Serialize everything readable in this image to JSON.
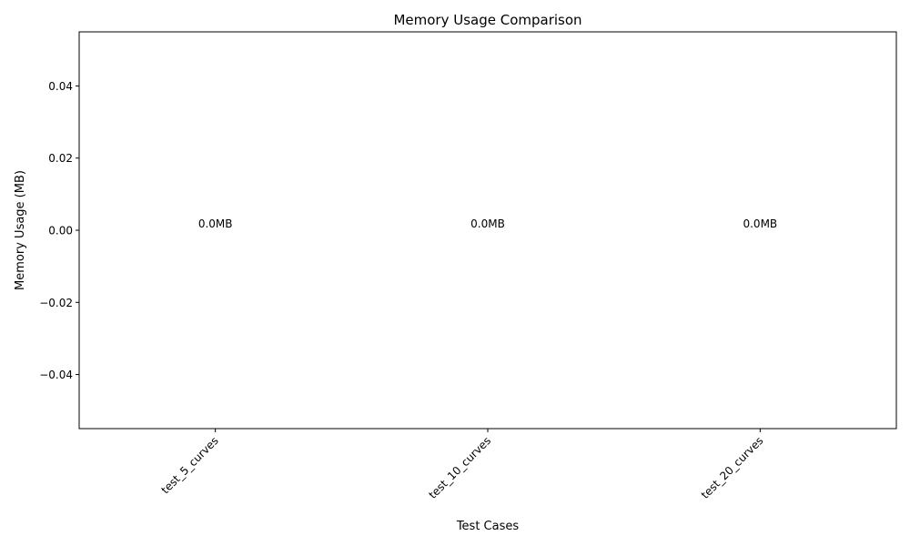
{
  "chart_data": {
    "type": "bar",
    "title": "Memory Usage Comparison",
    "xlabel": "Test Cases",
    "ylabel": "Memory Usage (MB)",
    "categories": [
      "test_5_curves",
      "test_10_curves",
      "test_20_curves"
    ],
    "values": [
      0.0,
      0.0,
      0.0
    ],
    "data_labels": [
      "0.0MB",
      "0.0MB",
      "0.0MB"
    ],
    "ylim": [
      -0.055,
      0.055
    ],
    "yticks": [
      -0.04,
      -0.02,
      0.0,
      0.02,
      0.04
    ],
    "ytick_labels": [
      "−0.04",
      "−0.02",
      "0.00",
      "0.02",
      "0.04"
    ],
    "grid": false,
    "colors": {
      "axis": "#000000",
      "bar": "#1f77b4"
    }
  }
}
